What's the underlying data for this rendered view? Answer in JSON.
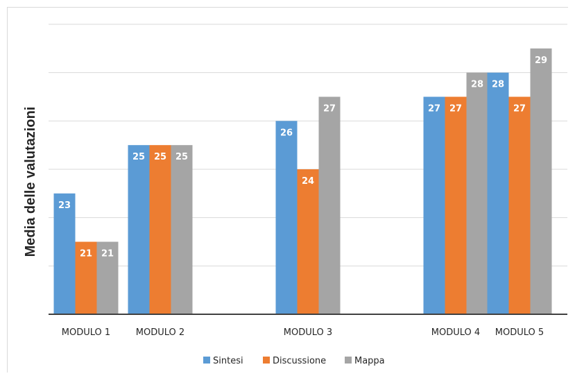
{
  "chart_data": {
    "type": "bar",
    "title": "",
    "xlabel": "",
    "ylabel": "Media delle valutazioni",
    "categories": [
      "MODULO 1",
      "MODULO 2",
      "MODULO 3",
      "MODULO 4",
      "MODULO 5"
    ],
    "series": [
      {
        "name": "Sintesi",
        "color": "#5b9bd5",
        "values": [
          23,
          25,
          26,
          27,
          28
        ]
      },
      {
        "name": "Discussione",
        "color": "#ed7d31",
        "values": [
          21,
          25,
          24,
          27,
          27
        ]
      },
      {
        "name": "Mappa",
        "color": "#a5a5a5",
        "values": [
          21,
          25,
          27,
          28,
          29
        ]
      }
    ],
    "ylim": [
      18,
      30
    ],
    "y_ticks": [
      18,
      20,
      22,
      24,
      26,
      28,
      30
    ],
    "y_tick_labels_visible": false,
    "grid": true,
    "legend": "bottom",
    "data_labels": true
  }
}
